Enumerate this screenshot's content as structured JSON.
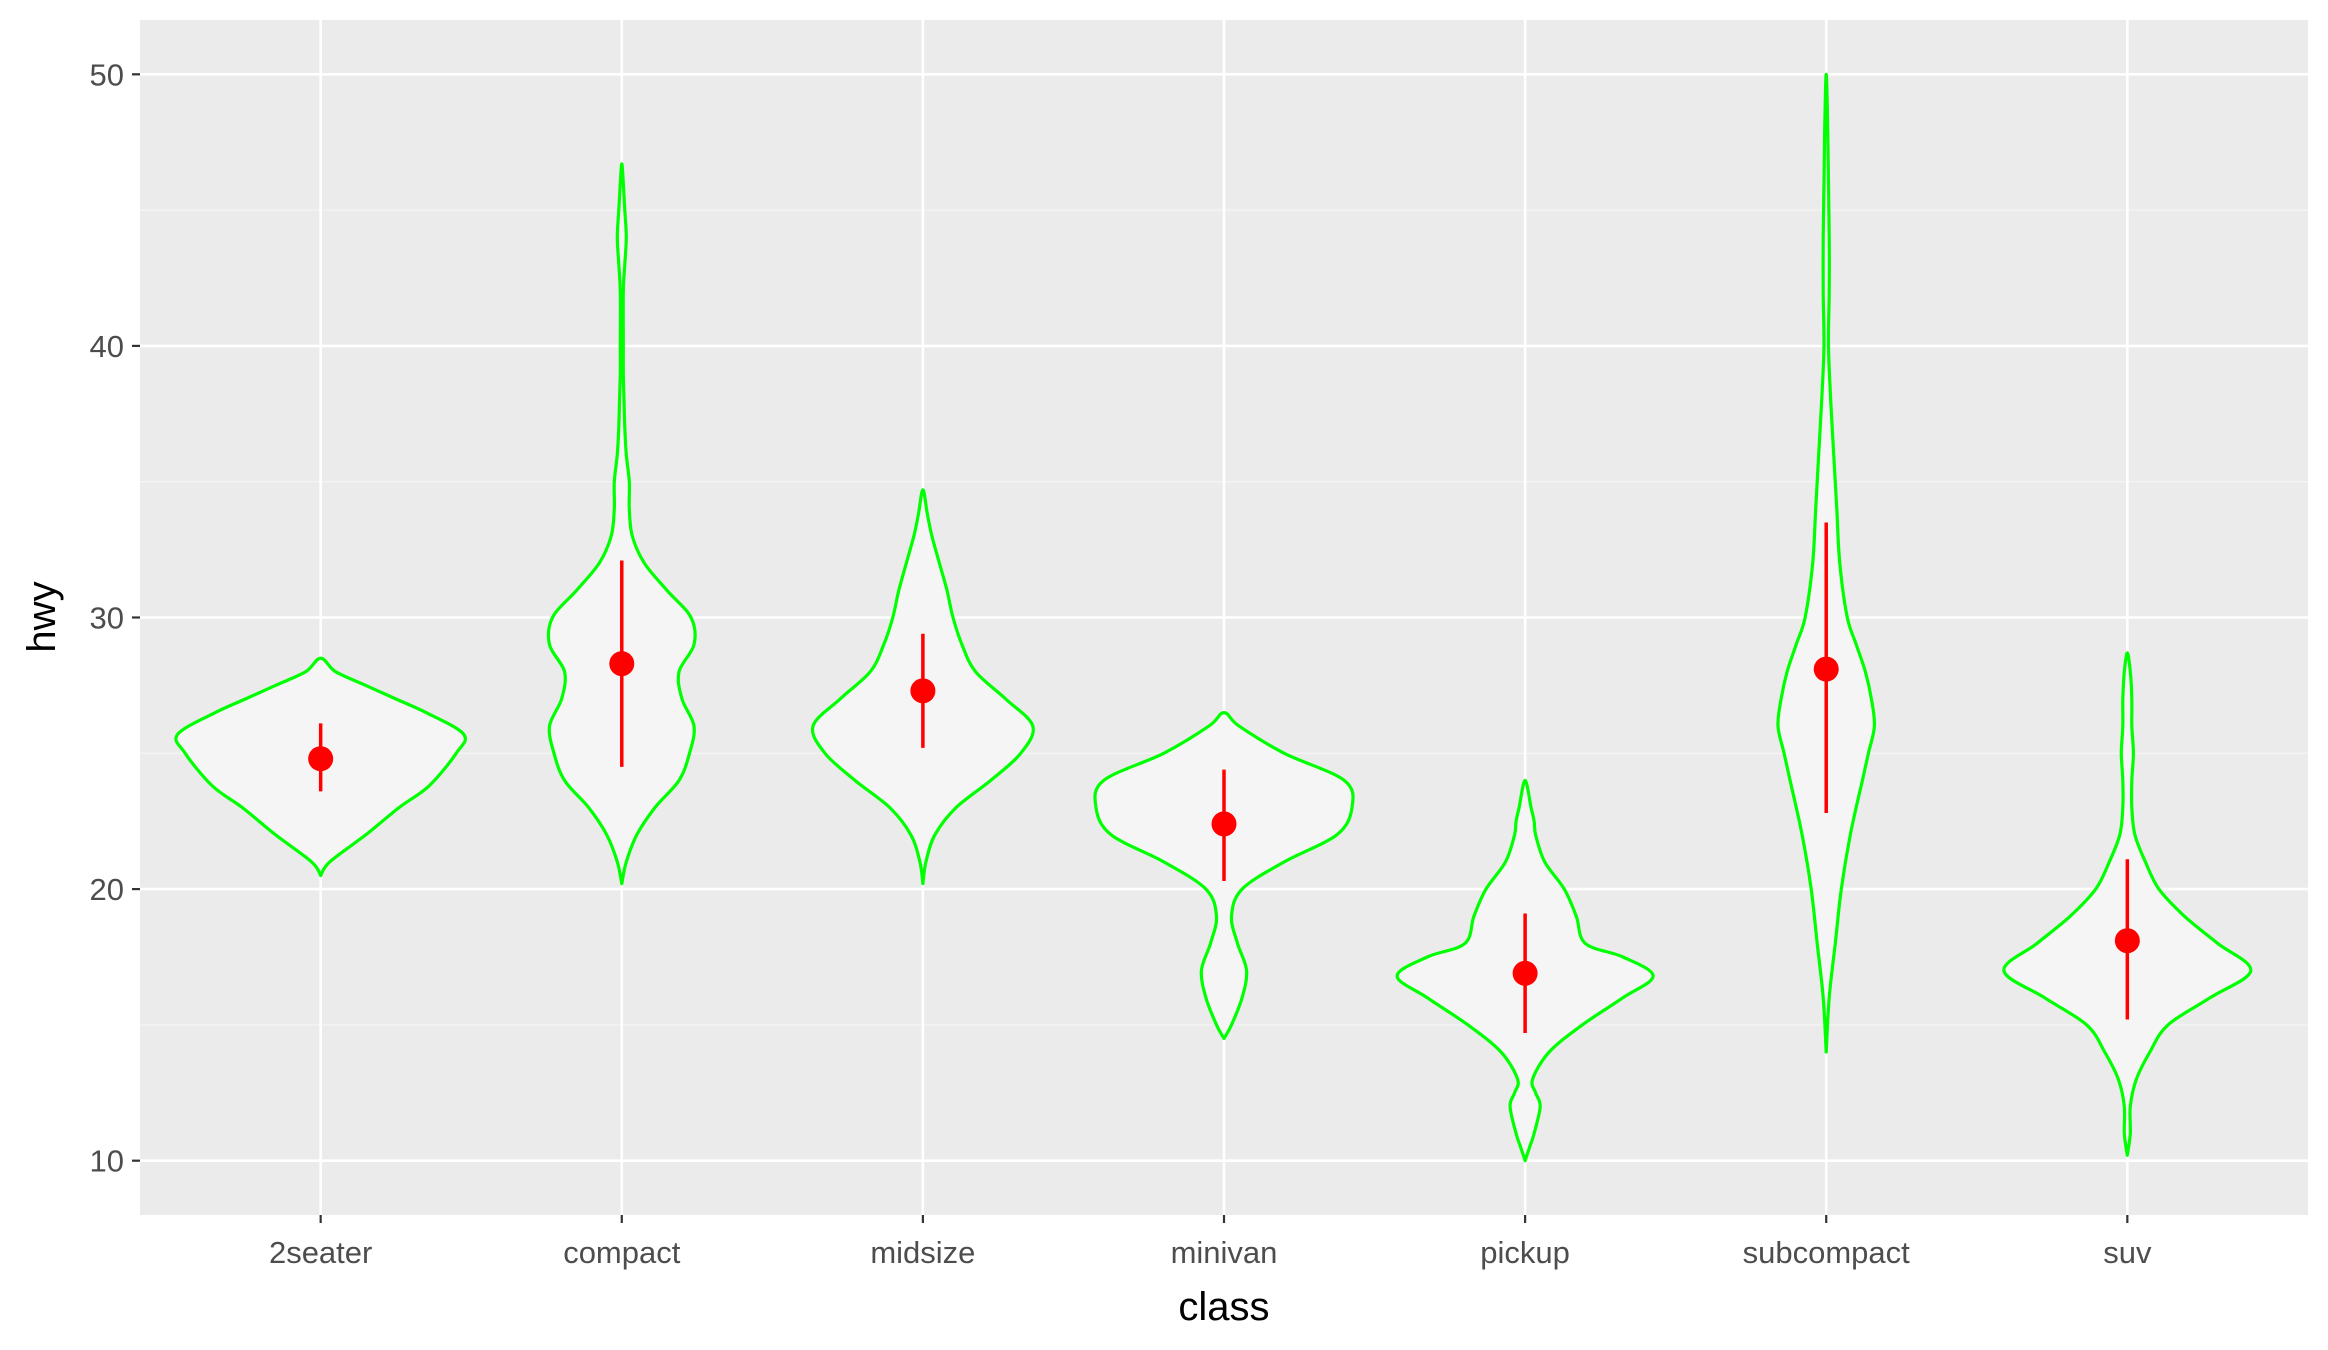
{
  "chart_data": {
    "type": "violin",
    "xlabel": "class",
    "ylabel": "hwy",
    "ylim": [
      8,
      52
    ],
    "yticks": [
      10,
      20,
      30,
      40,
      50
    ],
    "categories": [
      "2seater",
      "compact",
      "midsize",
      "minivan",
      "pickup",
      "subcompact",
      "suv"
    ],
    "summary": [
      {
        "category": "2seater",
        "mean": 24.8,
        "lower": 23.6,
        "upper": 26.1
      },
      {
        "category": "compact",
        "mean": 28.3,
        "lower": 24.5,
        "upper": 32.1
      },
      {
        "category": "midsize",
        "mean": 27.3,
        "lower": 25.2,
        "upper": 29.4
      },
      {
        "category": "minivan",
        "mean": 22.4,
        "lower": 20.3,
        "upper": 24.4
      },
      {
        "category": "pickup",
        "mean": 16.9,
        "lower": 14.7,
        "upper": 19.1
      },
      {
        "category": "subcompact",
        "mean": 28.1,
        "lower": 22.8,
        "upper": 33.5
      },
      {
        "category": "suv",
        "mean": 18.1,
        "lower": 15.2,
        "upper": 21.1
      }
    ],
    "violin_profiles": [
      {
        "category": "2seater",
        "y": [
          20.5,
          21.0,
          22.0,
          23.0,
          23.8,
          25.0,
          25.7,
          26.5,
          27.0,
          27.5,
          28.0,
          28.5
        ],
        "half_width": [
          0.0,
          0.06,
          0.3,
          0.52,
          0.72,
          0.9,
          0.95,
          0.7,
          0.5,
          0.3,
          0.1,
          0.0
        ]
      },
      {
        "category": "compact",
        "y": [
          20.2,
          21.0,
          22.0,
          23.0,
          24.0,
          25.0,
          26.0,
          27.0,
          28.0,
          29.0,
          30.0,
          31.0,
          32.0,
          33.0,
          34.0,
          35.0,
          36.0,
          37.0,
          38.0,
          39.0,
          40.0,
          42.0,
          43.0,
          44.0,
          45.0,
          46.0,
          46.7
        ],
        "half_width": [
          0.0,
          0.03,
          0.1,
          0.22,
          0.38,
          0.45,
          0.48,
          0.4,
          0.38,
          0.48,
          0.46,
          0.3,
          0.15,
          0.07,
          0.05,
          0.05,
          0.03,
          0.02,
          0.015,
          0.01,
          0.01,
          0.01,
          0.02,
          0.03,
          0.02,
          0.01,
          0.0
        ]
      },
      {
        "category": "midsize",
        "y": [
          20.2,
          21.0,
          22.0,
          23.0,
          24.0,
          25.0,
          26.0,
          27.0,
          28.0,
          29.0,
          30.0,
          31.0,
          32.0,
          33.0,
          33.8,
          34.7
        ],
        "half_width": [
          0.0,
          0.02,
          0.08,
          0.22,
          0.45,
          0.65,
          0.73,
          0.55,
          0.35,
          0.26,
          0.2,
          0.16,
          0.11,
          0.06,
          0.03,
          0.0
        ]
      },
      {
        "category": "minivan",
        "y": [
          14.5,
          15.0,
          16.0,
          17.0,
          18.0,
          19.0,
          20.0,
          21.0,
          22.0,
          23.0,
          24.0,
          25.0,
          26.0,
          26.5
        ],
        "half_width": [
          0.0,
          0.05,
          0.12,
          0.15,
          0.09,
          0.05,
          0.12,
          0.4,
          0.75,
          0.85,
          0.8,
          0.4,
          0.1,
          0.0
        ]
      },
      {
        "category": "pickup",
        "y": [
          10.0,
          10.5,
          11.0,
          12.0,
          12.5,
          13.0,
          14.0,
          15.0,
          16.0,
          16.8,
          17.5,
          18.0,
          19.0,
          20.0,
          21.0,
          22.0,
          22.5,
          23.0,
          24.0
        ],
        "half_width": [
          0.0,
          0.03,
          0.06,
          0.1,
          0.07,
          0.05,
          0.16,
          0.38,
          0.65,
          0.85,
          0.65,
          0.4,
          0.34,
          0.26,
          0.13,
          0.07,
          0.06,
          0.04,
          0.0
        ]
      },
      {
        "category": "subcompact",
        "y": [
          14.0,
          16.0,
          18.0,
          20.0,
          22.0,
          24.0,
          25.0,
          26.0,
          27.0,
          28.0,
          29.0,
          30.0,
          32.0,
          34.0,
          36.0,
          38.0,
          40.0,
          42.0,
          44.0,
          46.0,
          48.0,
          50.0
        ],
        "half_width": [
          0.0,
          0.02,
          0.06,
          0.1,
          0.16,
          0.24,
          0.28,
          0.32,
          0.3,
          0.26,
          0.2,
          0.14,
          0.09,
          0.07,
          0.05,
          0.03,
          0.015,
          0.02,
          0.02,
          0.015,
          0.01,
          0.0
        ]
      },
      {
        "category": "suv",
        "y": [
          10.2,
          11.0,
          12.0,
          13.0,
          14.0,
          15.0,
          16.0,
          17.0,
          18.0,
          19.0,
          20.0,
          21.0,
          22.0,
          23.0,
          24.0,
          25.0,
          26.0,
          27.0,
          28.0,
          28.7
        ],
        "half_width": [
          0.0,
          0.02,
          0.02,
          0.06,
          0.15,
          0.27,
          0.55,
          0.82,
          0.6,
          0.38,
          0.21,
          0.12,
          0.05,
          0.03,
          0.03,
          0.04,
          0.03,
          0.03,
          0.02,
          0.0
        ]
      }
    ],
    "colors": {
      "panel": "#ebebeb",
      "grid_major": "#ffffff",
      "grid_minor": "#f5f5f5",
      "violin_fill": "#f5f5f5",
      "violin_stroke": "#00ff00",
      "summary": "#ff0000",
      "tick": "#333333"
    },
    "grid": true,
    "legend": "none"
  }
}
